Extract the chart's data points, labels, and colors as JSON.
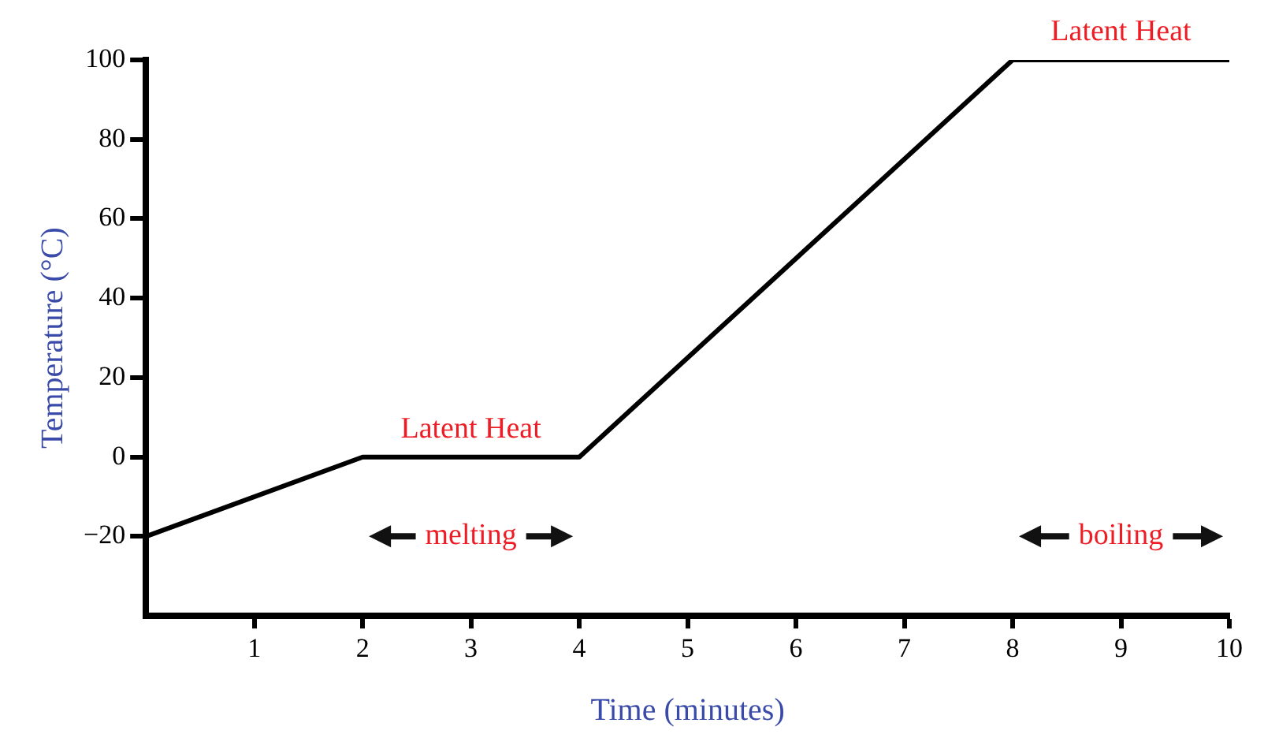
{
  "chart_data": {
    "type": "line",
    "xlabel": "Time (minutes)",
    "ylabel": "Temperature (°C)",
    "x": [
      0,
      2,
      4,
      8,
      10
    ],
    "series": [
      {
        "color": "#000000",
        "values": [
          -20,
          0,
          0,
          100,
          100
        ]
      }
    ],
    "xlim": [
      0,
      10
    ],
    "xticks": [
      1,
      2,
      3,
      4,
      5,
      6,
      7,
      8,
      9,
      10
    ],
    "ylim": [
      -40,
      100
    ],
    "yticks": [
      -20,
      0,
      20,
      40,
      60,
      80,
      100
    ],
    "grid": false,
    "legend": false,
    "marker": "none",
    "line_style": "solid",
    "annotations": [
      {
        "text": "Latent Heat",
        "x": 3,
        "y": 0
      },
      {
        "text": "Latent Heat",
        "x": 9,
        "y": 100
      },
      "melting",
      "boiling"
    ]
  }
}
